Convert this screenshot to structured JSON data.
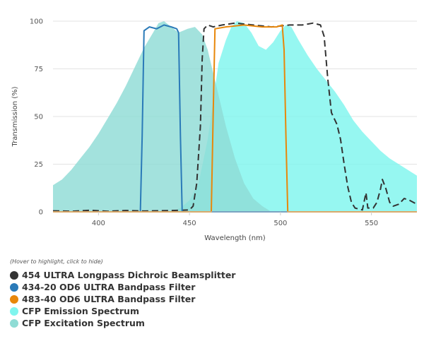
{
  "chart_data": {
    "type": "line",
    "xlabel": "Wavelength (nm)",
    "ylabel": "Transmission (%)",
    "xlim": [
      375,
      575
    ],
    "ylim": [
      0,
      100
    ],
    "x_ticks": [
      400,
      450,
      500,
      550
    ],
    "y_ticks": [
      0,
      25,
      50,
      75,
      100
    ],
    "grid": "horizontal",
    "legend_position": "bottom",
    "legend_hint": "(Hover to highlight, click to hide)",
    "series": [
      {
        "name": "454 ULTRA Longpass Dichroic Beamsplitter",
        "color": "#333333",
        "style": "dashed",
        "points": [
          [
            375,
            0.5
          ],
          [
            385,
            0.3
          ],
          [
            395,
            0.8
          ],
          [
            405,
            0.3
          ],
          [
            415,
            0.7
          ],
          [
            425,
            0.4
          ],
          [
            435,
            0.6
          ],
          [
            445,
            0.8
          ],
          [
            450,
            1
          ],
          [
            452,
            3
          ],
          [
            454,
            15
          ],
          [
            456,
            45
          ],
          [
            457,
            80
          ],
          [
            458,
            96
          ],
          [
            460,
            98
          ],
          [
            463,
            97
          ],
          [
            468,
            98
          ],
          [
            475,
            99
          ],
          [
            485,
            98
          ],
          [
            495,
            97
          ],
          [
            505,
            98
          ],
          [
            512,
            98
          ],
          [
            518,
            99
          ],
          [
            522,
            98
          ],
          [
            524,
            92
          ],
          [
            526,
            70
          ],
          [
            528,
            52
          ],
          [
            531,
            46
          ],
          [
            533,
            38
          ],
          [
            535,
            25
          ],
          [
            537,
            13
          ],
          [
            539,
            5
          ],
          [
            541,
            2
          ],
          [
            545,
            1
          ],
          [
            547,
            10
          ],
          [
            548,
            2
          ],
          [
            551,
            2
          ],
          [
            553,
            5
          ],
          [
            555,
            12
          ],
          [
            556,
            17
          ],
          [
            558,
            12
          ],
          [
            560,
            5
          ],
          [
            562,
            3
          ],
          [
            565,
            4
          ],
          [
            568,
            7
          ],
          [
            571,
            6
          ],
          [
            575,
            4
          ]
        ]
      },
      {
        "name": "434-20 OD6 ULTRA Bandpass Filter",
        "color": "#2a7ab8",
        "style": "solid",
        "points": [
          [
            375,
            0
          ],
          [
            423,
            0
          ],
          [
            424,
            40
          ],
          [
            425,
            95
          ],
          [
            428,
            97
          ],
          [
            432,
            96
          ],
          [
            436,
            98
          ],
          [
            440,
            97
          ],
          [
            443,
            96
          ],
          [
            444,
            94
          ],
          [
            445,
            40
          ],
          [
            446,
            0
          ],
          [
            575,
            0
          ]
        ]
      },
      {
        "name": "483-40 OD6 ULTRA Bandpass Filter",
        "color": "#e8870a",
        "style": "solid",
        "points": [
          [
            375,
            0
          ],
          [
            462,
            0
          ],
          [
            463,
            50
          ],
          [
            464,
            96
          ],
          [
            470,
            97
          ],
          [
            480,
            98
          ],
          [
            490,
            97
          ],
          [
            498,
            97
          ],
          [
            501,
            98
          ],
          [
            502,
            85
          ],
          [
            503,
            40
          ],
          [
            504,
            0
          ],
          [
            575,
            0
          ]
        ]
      },
      {
        "name": "CFP Emission Spectrum",
        "color": "#7ff5ee",
        "style": "area",
        "points": [
          [
            440,
            0
          ],
          [
            445,
            2
          ],
          [
            450,
            6
          ],
          [
            455,
            15
          ],
          [
            460,
            38
          ],
          [
            463,
            58
          ],
          [
            466,
            78
          ],
          [
            470,
            90
          ],
          [
            473,
            97
          ],
          [
            476,
            100
          ],
          [
            480,
            99
          ],
          [
            484,
            94
          ],
          [
            488,
            87
          ],
          [
            492,
            85
          ],
          [
            496,
            89
          ],
          [
            500,
            95
          ],
          [
            503,
            98
          ],
          [
            506,
            97
          ],
          [
            510,
            90
          ],
          [
            515,
            82
          ],
          [
            520,
            75
          ],
          [
            525,
            69
          ],
          [
            530,
            63
          ],
          [
            535,
            56
          ],
          [
            540,
            48
          ],
          [
            545,
            42
          ],
          [
            550,
            37
          ],
          [
            555,
            32
          ],
          [
            560,
            28
          ],
          [
            565,
            25
          ],
          [
            570,
            22
          ],
          [
            575,
            19
          ]
        ]
      },
      {
        "name": "CFP Excitation Spectrum",
        "color": "#8fdcd5",
        "style": "area",
        "points": [
          [
            375,
            14
          ],
          [
            380,
            17
          ],
          [
            385,
            22
          ],
          [
            390,
            28
          ],
          [
            395,
            34
          ],
          [
            400,
            41
          ],
          [
            405,
            49
          ],
          [
            410,
            57
          ],
          [
            415,
            66
          ],
          [
            420,
            76
          ],
          [
            425,
            86
          ],
          [
            430,
            94
          ],
          [
            433,
            99
          ],
          [
            436,
            100
          ],
          [
            440,
            97
          ],
          [
            444,
            94
          ],
          [
            449,
            96
          ],
          [
            453,
            97
          ],
          [
            457,
            93
          ],
          [
            460,
            85
          ],
          [
            465,
            65
          ],
          [
            470,
            45
          ],
          [
            475,
            28
          ],
          [
            480,
            15
          ],
          [
            485,
            7
          ],
          [
            490,
            3
          ],
          [
            495,
            0
          ]
        ]
      }
    ]
  }
}
